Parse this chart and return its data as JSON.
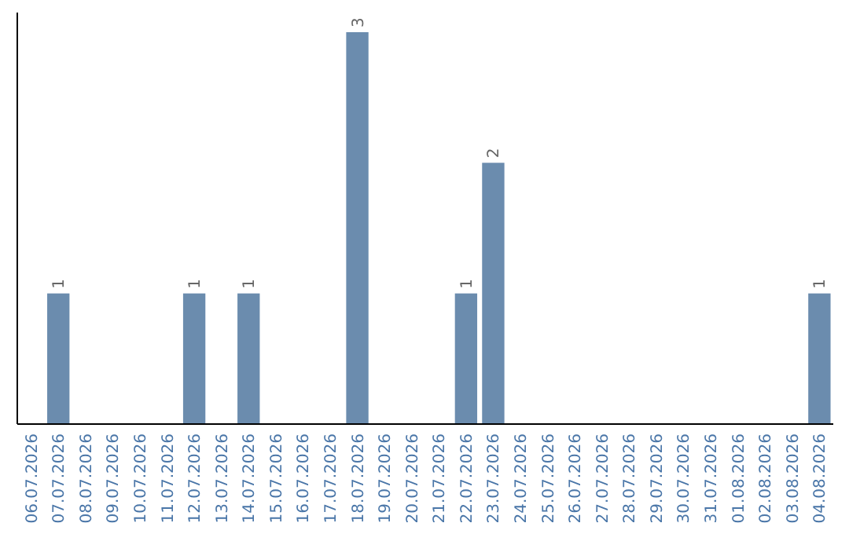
{
  "chart_data": {
    "type": "bar",
    "categories": [
      "06.07.2026",
      "07.07.2026",
      "08.07.2026",
      "09.07.2026",
      "10.07.2026",
      "11.07.2026",
      "12.07.2026",
      "13.07.2026",
      "14.07.2026",
      "15.07.2026",
      "16.07.2026",
      "17.07.2026",
      "18.07.2026",
      "19.07.2026",
      "20.07.2026",
      "21.07.2026",
      "22.07.2026",
      "23.07.2026",
      "24.07.2026",
      "25.07.2026",
      "26.07.2026",
      "27.07.2026",
      "28.07.2026",
      "29.07.2026",
      "30.07.2026",
      "31.07.2026",
      "01.08.2026",
      "02.08.2026",
      "03.08.2026",
      "04.08.2026"
    ],
    "values": [
      0,
      1,
      0,
      0,
      0,
      0,
      1,
      0,
      1,
      0,
      0,
      0,
      3,
      0,
      0,
      0,
      1,
      2,
      0,
      0,
      0,
      0,
      0,
      0,
      0,
      0,
      0,
      0,
      0,
      1
    ],
    "value_labels": [
      null,
      "1",
      null,
      null,
      null,
      null,
      "1",
      null,
      "1",
      null,
      null,
      null,
      "3",
      null,
      null,
      null,
      "1",
      "2",
      null,
      null,
      null,
      null,
      null,
      null,
      null,
      null,
      null,
      null,
      null,
      "1"
    ],
    "color": "#6b8cae"
  }
}
